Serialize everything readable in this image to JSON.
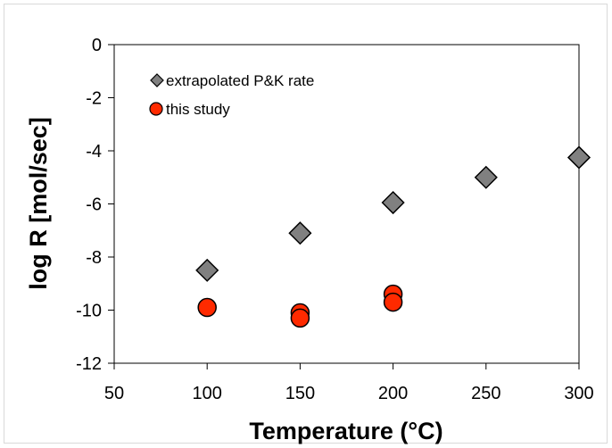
{
  "chart_data": {
    "type": "scatter",
    "xlabel": "Temperature  (°C)",
    "ylabel": "log R  [mol/sec]",
    "xlim": [
      50,
      300
    ],
    "ylim": [
      -12,
      0
    ],
    "xticks": [
      "50",
      "100",
      "150",
      "200",
      "250",
      "300"
    ],
    "yticks": [
      "0",
      "-2",
      "-4",
      "-6",
      "-8",
      "-10",
      "-12"
    ],
    "grid": false,
    "legend_position": "top-left",
    "series": [
      {
        "name": "extrapolated P&K rate",
        "marker": "diamond",
        "color": "#808080",
        "points": [
          {
            "x": 100,
            "y": -8.5
          },
          {
            "x": 150,
            "y": -7.1
          },
          {
            "x": 200,
            "y": -5.95
          },
          {
            "x": 250,
            "y": -5.0
          },
          {
            "x": 300,
            "y": -4.25
          }
        ]
      },
      {
        "name": "this study",
        "marker": "circle",
        "color": "#ff2a00",
        "points": [
          {
            "x": 100,
            "y": -9.9
          },
          {
            "x": 150,
            "y": -10.1
          },
          {
            "x": 150,
            "y": -10.3
          },
          {
            "x": 200,
            "y": -9.4
          },
          {
            "x": 200,
            "y": -9.7
          }
        ]
      }
    ]
  }
}
